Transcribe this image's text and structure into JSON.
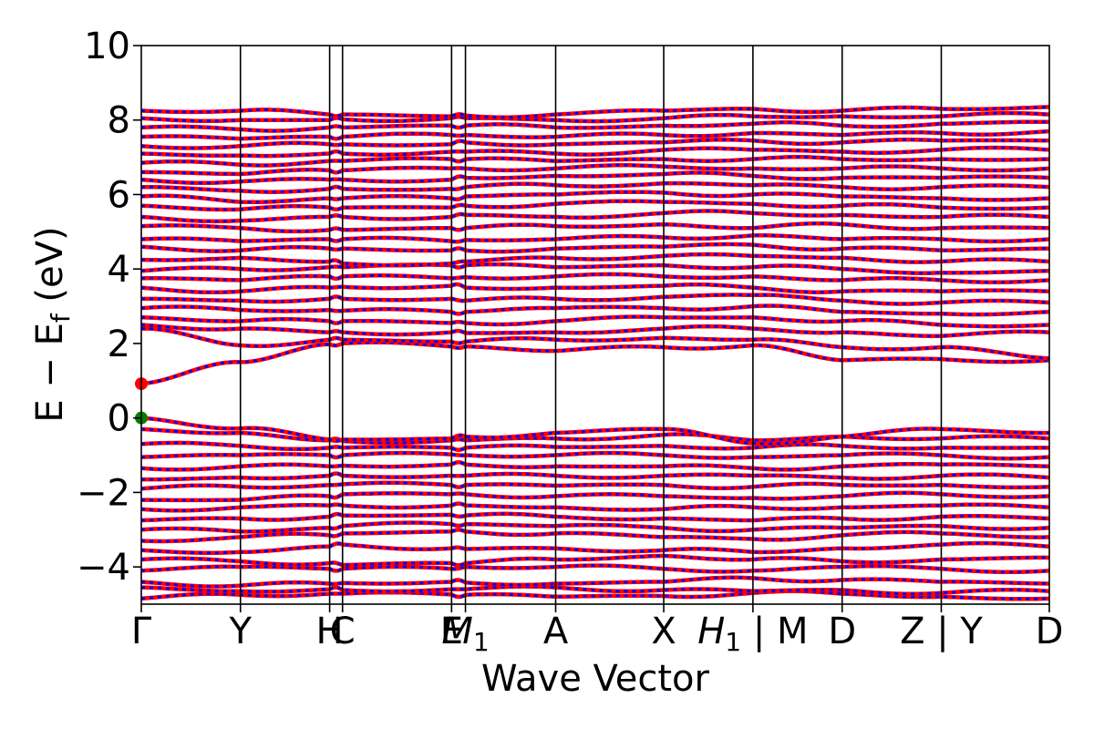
{
  "chart_data": {
    "type": "line",
    "title": "",
    "xlabel": "Wave Vector",
    "ylabel": "E − E_f (eV)",
    "ylabel_main": "E − E",
    "ylabel_sub": "f",
    "ylabel_unit": " (eV)",
    "ylim": [
      -5,
      10
    ],
    "yticks": [
      -4,
      -2,
      0,
      2,
      4,
      6,
      8,
      10
    ],
    "ytick_labels": [
      "−4",
      "−2",
      "0",
      "2",
      "4",
      "6",
      "8",
      "10"
    ],
    "xlim": [
      0,
      9.16
    ],
    "kpoints": [
      {
        "label": "Γ",
        "x": 0.0
      },
      {
        "label": "Y",
        "x": 1.0
      },
      {
        "label": "H",
        "x": 1.9
      },
      {
        "label": "C",
        "x": 2.03
      },
      {
        "label": "E",
        "x": 3.13
      },
      {
        "label": "M",
        "sub": "1",
        "x": 3.27
      },
      {
        "label": "A",
        "x": 4.18
      },
      {
        "label": "X",
        "x": 5.27
      },
      {
        "label": "H",
        "sub": "1",
        "x": 6.17,
        "suffix": " | M"
      },
      {
        "label": "D",
        "x": 7.07
      },
      {
        "label": "Z",
        "x": 8.07,
        "suffix": " | Y"
      },
      {
        "label": "D",
        "x": 9.16
      }
    ],
    "vbm": {
      "x": 0.0,
      "y": 0.0,
      "color": "#008000"
    },
    "cbm": {
      "x": 0.0,
      "y": 0.92,
      "color": "#ff0000"
    },
    "series": [
      {
        "color": "#ff0000",
        "style": "solid"
      },
      {
        "color": "#0000ff",
        "style": "dotted"
      }
    ],
    "band_anchors": [
      [
        -4.85,
        -4.75,
        -4.72,
        -4.72,
        -4.74,
        -4.75,
        -4.8,
        -4.78,
        -4.7,
        -4.72,
        -4.8,
        -4.85
      ],
      [
        -4.55,
        -4.65,
        -4.6,
        -4.62,
        -4.6,
        -4.6,
        -4.55,
        -4.62,
        -4.65,
        -4.62,
        -4.7,
        -4.65
      ],
      [
        -4.4,
        -4.5,
        -4.45,
        -4.43,
        -4.4,
        -4.42,
        -4.45,
        -4.4,
        -4.3,
        -4.35,
        -4.4,
        -4.45
      ],
      [
        -4.1,
        -4.0,
        -4.05,
        -4.05,
        -4.05,
        -4.0,
        -4.0,
        -4.05,
        -4.1,
        -4.0,
        -4.05,
        -4.1
      ],
      [
        -3.8,
        -3.85,
        -3.9,
        -3.95,
        -3.9,
        -3.9,
        -3.8,
        -3.7,
        -3.8,
        -3.85,
        -3.8,
        -3.75
      ],
      [
        -3.55,
        -3.6,
        -3.45,
        -3.4,
        -3.5,
        -3.52,
        -3.5,
        -3.55,
        -3.6,
        -3.5,
        -3.4,
        -3.45
      ],
      [
        -3.3,
        -3.2,
        -3.15,
        -3.1,
        -3.05,
        -3.05,
        -3.1,
        -3.2,
        -3.25,
        -3.15,
        -3.1,
        -3.2
      ],
      [
        -3.0,
        -3.05,
        -2.95,
        -2.9,
        -2.85,
        -2.85,
        -2.9,
        -2.95,
        -3.0,
        -2.95,
        -2.9,
        -2.95
      ],
      [
        -2.75,
        -2.7,
        -2.65,
        -2.62,
        -2.6,
        -2.62,
        -2.65,
        -2.7,
        -2.75,
        -2.7,
        -2.65,
        -2.7
      ],
      [
        -2.45,
        -2.4,
        -2.35,
        -2.35,
        -2.35,
        -2.35,
        -2.4,
        -2.45,
        -2.4,
        -2.4,
        -2.35,
        -2.4
      ],
      [
        -2.2,
        -2.2,
        -2.1,
        -2.05,
        -2.05,
        -2.05,
        -2.1,
        -2.1,
        -2.15,
        -2.1,
        -2.05,
        -2.1
      ],
      [
        -1.9,
        -1.85,
        -1.8,
        -1.78,
        -1.8,
        -1.8,
        -1.82,
        -1.8,
        -1.85,
        -1.8,
        -1.8,
        -1.85
      ],
      [
        -1.65,
        -1.6,
        -1.55,
        -1.55,
        -1.55,
        -1.55,
        -1.55,
        -1.55,
        -1.55,
        -1.6,
        -1.55,
        -1.6
      ],
      [
        -1.35,
        -1.3,
        -1.3,
        -1.28,
        -1.25,
        -1.25,
        -1.3,
        -1.3,
        -1.35,
        -1.3,
        -1.25,
        -1.3
      ],
      [
        -1.05,
        -1.0,
        -1.0,
        -1.0,
        -0.98,
        -1.0,
        -1.0,
        -1.0,
        -1.05,
        -1.0,
        -1.0,
        -1.05
      ],
      [
        -0.7,
        -0.75,
        -0.8,
        -0.8,
        -0.8,
        -0.8,
        -0.78,
        -0.75,
        -0.8,
        -0.75,
        -0.8,
        -0.8
      ],
      [
        -0.3,
        -0.4,
        -0.6,
        -0.62,
        -0.6,
        -0.6,
        -0.55,
        -0.45,
        -0.6,
        -0.5,
        -0.55,
        -0.55
      ],
      [
        0.0,
        -0.28,
        -0.58,
        -0.58,
        -0.55,
        -0.5,
        -0.4,
        -0.3,
        -0.68,
        -0.5,
        -0.3,
        -0.4
      ],
      [
        0.92,
        1.5,
        1.98,
        2.0,
        1.92,
        1.92,
        1.8,
        1.9,
        1.95,
        1.55,
        1.58,
        1.55
      ],
      [
        2.4,
        1.95,
        2.1,
        2.1,
        2.05,
        2.05,
        2.1,
        2.15,
        2.1,
        1.9,
        1.9,
        1.6
      ],
      [
        2.5,
        2.4,
        2.3,
        2.3,
        2.3,
        2.28,
        2.3,
        2.4,
        2.4,
        2.3,
        2.2,
        2.3
      ],
      [
        2.7,
        2.6,
        2.6,
        2.6,
        2.55,
        2.55,
        2.6,
        2.7,
        2.7,
        2.6,
        2.5,
        2.5
      ],
      [
        2.95,
        2.9,
        2.9,
        2.88,
        2.85,
        2.85,
        2.95,
        2.95,
        3.0,
        2.85,
        2.8,
        2.85
      ],
      [
        3.2,
        3.15,
        3.2,
        3.2,
        3.2,
        3.15,
        3.2,
        3.25,
        3.3,
        3.15,
        3.1,
        3.1
      ],
      [
        3.5,
        3.4,
        3.5,
        3.52,
        3.55,
        3.5,
        3.5,
        3.55,
        3.5,
        3.4,
        3.4,
        3.4
      ],
      [
        3.75,
        3.7,
        3.8,
        3.8,
        3.75,
        3.78,
        3.8,
        3.8,
        3.8,
        3.7,
        3.7,
        3.7
      ],
      [
        3.95,
        4.0,
        4.05,
        4.05,
        4.1,
        4.1,
        4.05,
        4.1,
        4.05,
        4.0,
        3.9,
        3.95
      ],
      [
        4.25,
        4.3,
        4.2,
        4.15,
        4.15,
        4.2,
        4.3,
        4.35,
        4.35,
        4.3,
        4.2,
        4.2
      ],
      [
        4.6,
        4.5,
        4.55,
        4.55,
        4.5,
        4.5,
        4.55,
        4.6,
        4.65,
        4.55,
        4.5,
        4.55
      ],
      [
        4.8,
        4.75,
        4.8,
        4.8,
        4.75,
        4.78,
        4.8,
        4.85,
        4.9,
        4.8,
        4.8,
        4.8
      ],
      [
        5.15,
        5.1,
        5.05,
        5.05,
        5.1,
        5.1,
        5.15,
        5.2,
        5.1,
        5.2,
        5.1,
        5.1
      ],
      [
        5.4,
        5.3,
        5.4,
        5.4,
        5.4,
        5.45,
        5.4,
        5.5,
        5.5,
        5.45,
        5.4,
        5.4
      ],
      [
        5.7,
        5.6,
        5.65,
        5.65,
        5.65,
        5.7,
        5.75,
        5.8,
        5.75,
        5.7,
        5.65,
        5.65
      ],
      [
        5.95,
        5.8,
        5.9,
        5.9,
        5.9,
        5.95,
        6.0,
        6.05,
        6.0,
        5.95,
        5.9,
        5.9
      ],
      [
        6.2,
        6.1,
        6.15,
        6.15,
        6.15,
        6.2,
        6.25,
        6.3,
        6.25,
        6.2,
        6.2,
        6.2
      ],
      [
        6.4,
        6.35,
        6.4,
        6.4,
        6.4,
        6.45,
        6.5,
        6.55,
        6.5,
        6.45,
        6.45,
        6.45
      ],
      [
        6.6,
        6.55,
        6.65,
        6.65,
        6.7,
        6.7,
        6.7,
        6.75,
        6.7,
        6.7,
        6.7,
        6.7
      ],
      [
        6.85,
        6.8,
        6.9,
        6.9,
        6.95,
        6.95,
        6.9,
        6.95,
        6.95,
        6.95,
        6.95,
        6.95
      ],
      [
        7.1,
        7.05,
        7.1,
        7.1,
        7.15,
        7.15,
        7.1,
        7.2,
        7.2,
        7.15,
        7.2,
        7.2
      ],
      [
        7.3,
        7.3,
        7.35,
        7.35,
        7.35,
        7.4,
        7.35,
        7.4,
        7.45,
        7.4,
        7.45,
        7.45
      ],
      [
        7.55,
        7.5,
        7.55,
        7.55,
        7.6,
        7.6,
        7.55,
        7.6,
        7.65,
        7.6,
        7.65,
        7.7
      ],
      [
        7.8,
        7.75,
        7.8,
        7.8,
        7.85,
        7.85,
        7.8,
        7.85,
        7.9,
        7.85,
        7.9,
        7.95
      ],
      [
        8.05,
        8.0,
        8.0,
        8.02,
        8.05,
        8.05,
        8.0,
        8.05,
        8.1,
        8.1,
        8.1,
        8.15
      ],
      [
        8.25,
        8.25,
        8.15,
        8.15,
        8.1,
        8.12,
        8.15,
        8.25,
        8.3,
        8.25,
        8.3,
        8.35
      ]
    ]
  }
}
